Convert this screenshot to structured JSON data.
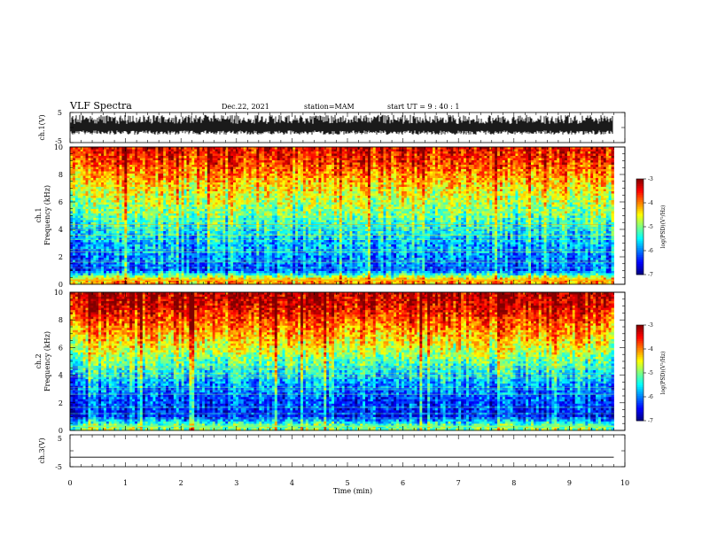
{
  "header": {
    "title": "VLF Spectra",
    "date": "Dec.22, 2021",
    "station": "station=MAM",
    "start": "start  UT =   9 : 40 : 1"
  },
  "chart_data": [
    {
      "type": "line",
      "panel": "ch1-waveform",
      "ylabel": "ch.1(V)",
      "xlim": [
        0,
        10
      ],
      "ylim": [
        -5,
        5
      ],
      "yticks": [
        "5",
        "-5"
      ],
      "signal": "dense noise-like waveform, amplitude ~ -2 to +4 V, nearly full scale"
    },
    {
      "type": "heatmap",
      "panel": "ch1-spectrogram",
      "ylabel_line1": "ch.1",
      "ylabel_line2": "Frequency (kHz)",
      "xlim": [
        0,
        9.8
      ],
      "ylim": [
        0,
        10
      ],
      "yticks": [
        "0",
        "2",
        "4",
        "6",
        "8",
        "10"
      ],
      "colorbar": {
        "label": "log(PSD)(V²/Hz)",
        "range": [
          -7,
          -3
        ],
        "ticks": [
          "-3",
          "-4",
          "-5",
          "-6",
          "-7"
        ]
      },
      "profile": [
        {
          "f": 0.3,
          "level": -4.2
        },
        {
          "f": 1.0,
          "level": -6.2
        },
        {
          "f": 2.0,
          "level": -6.0
        },
        {
          "f": 3.0,
          "level": -5.8
        },
        {
          "f": 4.0,
          "level": -5.5
        },
        {
          "f": 5.0,
          "level": -5.1
        },
        {
          "f": 6.0,
          "level": -4.8
        },
        {
          "f": 7.0,
          "level": -4.5
        },
        {
          "f": 8.0,
          "level": -4.1
        },
        {
          "f": 9.0,
          "level": -3.7
        },
        {
          "f": 10.0,
          "level": -3.5
        }
      ]
    },
    {
      "type": "heatmap",
      "panel": "ch2-spectrogram",
      "ylabel_line1": "ch.2",
      "ylabel_line2": "Frequency (kHz)",
      "xlim": [
        0,
        9.8
      ],
      "ylim": [
        0,
        10
      ],
      "yticks": [
        "0",
        "2",
        "4",
        "6",
        "8",
        "10"
      ],
      "colorbar": {
        "label": "log(PSD)(V²/Hz)",
        "range": [
          -7,
          -3
        ],
        "ticks": [
          "-3",
          "-4",
          "-5",
          "-6",
          "-7"
        ]
      },
      "profile": [
        {
          "f": 0.3,
          "level": -5.0
        },
        {
          "f": 1.0,
          "level": -6.4
        },
        {
          "f": 2.0,
          "level": -6.3
        },
        {
          "f": 3.0,
          "level": -6.0
        },
        {
          "f": 4.0,
          "level": -5.6
        },
        {
          "f": 5.0,
          "level": -5.1
        },
        {
          "f": 6.0,
          "level": -4.6
        },
        {
          "f": 7.0,
          "level": -4.2
        },
        {
          "f": 8.0,
          "level": -3.8
        },
        {
          "f": 9.0,
          "level": -3.4
        },
        {
          "f": 10.0,
          "level": -3.2
        }
      ]
    },
    {
      "type": "line",
      "panel": "ch3-waveform",
      "ylabel": "ch.3(V)",
      "xlabel": "Time  (min)",
      "xlim": [
        0,
        10
      ],
      "ylim": [
        -5,
        5
      ],
      "yticks": [
        "5",
        "-5"
      ],
      "xticks": [
        "0",
        "1",
        "2",
        "3",
        "4",
        "5",
        "6",
        "7",
        "8",
        "9",
        "10"
      ],
      "series": [
        {
          "x": [
            0,
            9.8
          ],
          "y": [
            -2,
            -2
          ]
        }
      ]
    }
  ]
}
